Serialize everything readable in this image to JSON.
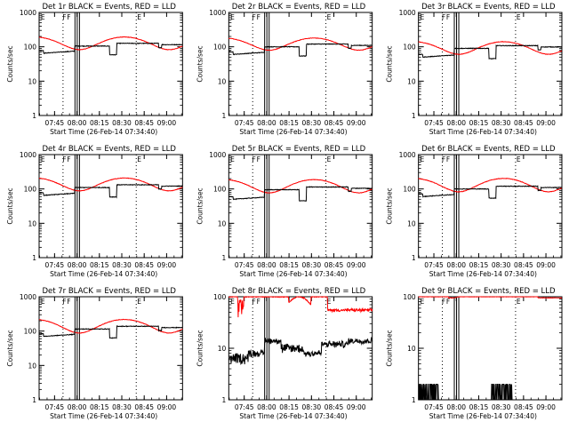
{
  "figure": {
    "layout": "3x3 grid"
  },
  "chart_data": [
    {
      "type": "line",
      "title": "Det 1r BLACK = Events, RED = LLD",
      "xlabel": "Start Time (26-Feb-14 07:34:40)",
      "ylabel": "Counts/sec",
      "yscale": "log",
      "ylim": [
        1,
        1000
      ],
      "ytick_labels": [
        "1",
        "10",
        "100",
        "1000"
      ],
      "x_tick_labels": [
        "07:45",
        "08:00",
        "08:15",
        "08:30",
        "08:45",
        "09:00"
      ],
      "xlim_minutes": [
        0,
        96
      ],
      "region_markers": [
        "E",
        "F",
        "F",
        "E"
      ],
      "region_marker_minutes": [
        0.5,
        15,
        18,
        65
      ],
      "vlines_dotted_minutes": [
        16,
        65
      ],
      "vlines_solid_minutes": [
        24,
        25.5,
        27
      ],
      "series": [
        {
          "color": "#ff0000",
          "base": 150,
          "amp": 110,
          "phase": 0,
          "noise": 0.03
        },
        {
          "color": "#000000",
          "kind": "events",
          "low": 65,
          "high": 105,
          "noise": 0.04
        }
      ]
    },
    {
      "type": "line",
      "title": "Det 2r BLACK = Events, RED = LLD",
      "xlabel": "Start Time (26-Feb-14 07:34:40)",
      "ylabel": "Counts/sec",
      "yscale": "log",
      "ylim": [
        1,
        1000
      ],
      "ytick_labels": [
        "1",
        "10",
        "100",
        "1000"
      ],
      "x_tick_labels": [
        "07:45",
        "08:00",
        "08:15",
        "08:30",
        "08:45",
        "09:00"
      ],
      "xlim_minutes": [
        0,
        96
      ],
      "region_markers": [
        "E",
        "F",
        "F",
        "E"
      ],
      "region_marker_minutes": [
        0.5,
        15,
        18,
        65
      ],
      "vlines_dotted_minutes": [
        16,
        65
      ],
      "vlines_solid_minutes": [
        24,
        25.5,
        27
      ],
      "series": [
        {
          "color": "#ff0000",
          "base": 145,
          "amp": 100,
          "phase": 0,
          "noise": 0.03
        },
        {
          "color": "#000000",
          "kind": "events",
          "low": 60,
          "high": 100,
          "noise": 0.04
        }
      ]
    },
    {
      "type": "line",
      "title": "Det 3r BLACK = Events, RED = LLD",
      "xlabel": "Start Time (26-Feb-14 07:34:40)",
      "ylabel": "Counts/sec",
      "yscale": "log",
      "ylim": [
        1,
        1000
      ],
      "ytick_labels": [
        "1",
        "10",
        "100",
        "1000"
      ],
      "x_tick_labels": [
        "07:45",
        "08:00",
        "08:15",
        "08:30",
        "08:45",
        "09:00"
      ],
      "xlim_minutes": [
        0,
        96
      ],
      "region_markers": [
        "E",
        "F",
        "F",
        "E"
      ],
      "region_marker_minutes": [
        0.5,
        15,
        18,
        65
      ],
      "vlines_dotted_minutes": [
        16,
        65
      ],
      "vlines_solid_minutes": [
        24,
        25.5,
        27
      ],
      "series": [
        {
          "color": "#ff0000",
          "base": 110,
          "amp": 80,
          "phase": 0,
          "noise": 0.03
        },
        {
          "color": "#000000",
          "kind": "events",
          "low": 50,
          "high": 90,
          "noise": 0.04
        }
      ]
    },
    {
      "type": "line",
      "title": "Det 4r BLACK = Events, RED = LLD",
      "xlabel": "Start Time (26-Feb-14 07:34:40)",
      "ylabel": "Counts/sec",
      "yscale": "log",
      "ylim": [
        1,
        1000
      ],
      "ytick_labels": [
        "1",
        "10",
        "100",
        "1000"
      ],
      "x_tick_labels": [
        "07:45",
        "08:00",
        "08:15",
        "08:30",
        "08:45",
        "09:00"
      ],
      "xlim_minutes": [
        0,
        96
      ],
      "region_markers": [
        "E",
        "F",
        "F",
        "E"
      ],
      "region_marker_minutes": [
        0.5,
        15,
        18,
        65
      ],
      "vlines_dotted_minutes": [
        16,
        65
      ],
      "vlines_solid_minutes": [
        24,
        25.5,
        27
      ],
      "series": [
        {
          "color": "#ff0000",
          "base": 160,
          "amp": 120,
          "phase": 0,
          "noise": 0.03
        },
        {
          "color": "#000000",
          "kind": "events",
          "low": 65,
          "high": 110,
          "noise": 0.04
        }
      ]
    },
    {
      "type": "line",
      "title": "Det 5r BLACK = Events, RED = LLD",
      "xlabel": "Start Time (26-Feb-14 07:34:40)",
      "ylabel": "Counts/sec",
      "yscale": "log",
      "ylim": [
        1,
        1000
      ],
      "ytick_labels": [
        "1",
        "10",
        "100",
        "1000"
      ],
      "x_tick_labels": [
        "07:45",
        "08:00",
        "08:15",
        "08:30",
        "08:45",
        "09:00"
      ],
      "xlim_minutes": [
        0,
        96
      ],
      "region_markers": [
        "E",
        "F",
        "F",
        "E"
      ],
      "region_marker_minutes": [
        0.5,
        15,
        18,
        65
      ],
      "vlines_dotted_minutes": [
        16,
        65
      ],
      "vlines_solid_minutes": [
        24,
        25.5,
        27
      ],
      "series": [
        {
          "color": "#ff0000",
          "base": 140,
          "amp": 110,
          "phase": 0,
          "noise": 0.03
        },
        {
          "color": "#000000",
          "kind": "events",
          "low": 50,
          "high": 95,
          "noise": 0.04
        }
      ]
    },
    {
      "type": "line",
      "title": "Det 6r BLACK = Events, RED = LLD",
      "xlabel": "Start Time (26-Feb-14 07:34:40)",
      "ylabel": "Counts/sec",
      "yscale": "log",
      "ylim": [
        1,
        1000
      ],
      "ytick_labels": [
        "1",
        "10",
        "100",
        "1000"
      ],
      "x_tick_labels": [
        "07:45",
        "08:00",
        "08:15",
        "08:30",
        "08:45",
        "09:00"
      ],
      "xlim_minutes": [
        0,
        96
      ],
      "region_markers": [
        "E",
        "F",
        "F",
        "E"
      ],
      "region_marker_minutes": [
        0.5,
        15,
        18,
        65
      ],
      "vlines_dotted_minutes": [
        16,
        65
      ],
      "vlines_solid_minutes": [
        24,
        25.5,
        27
      ],
      "series": [
        {
          "color": "#ff0000",
          "base": 150,
          "amp": 120,
          "phase": 0,
          "noise": 0.03
        },
        {
          "color": "#000000",
          "kind": "events",
          "low": 60,
          "high": 100,
          "noise": 0.04
        }
      ]
    },
    {
      "type": "line",
      "title": "Det 7r BLACK = Events, RED = LLD",
      "xlabel": "Start Time (26-Feb-14 07:34:40)",
      "ylabel": "Counts/sec",
      "yscale": "log",
      "ylim": [
        1,
        1000
      ],
      "ytick_labels": [
        "1",
        "10",
        "100",
        "1000"
      ],
      "x_tick_labels": [
        "07:45",
        "08:00",
        "08:15",
        "08:30",
        "08:45",
        "09:00"
      ],
      "xlim_minutes": [
        0,
        96
      ],
      "region_markers": [
        "E",
        "F",
        "F",
        "E"
      ],
      "region_marker_minutes": [
        0.5,
        15,
        18,
        65
      ],
      "vlines_dotted_minutes": [
        16,
        65
      ],
      "vlines_solid_minutes": [
        24,
        25.5,
        27
      ],
      "series": [
        {
          "color": "#ff0000",
          "base": 160,
          "amp": 130,
          "phase": 0,
          "noise": 0.03
        },
        {
          "color": "#000000",
          "kind": "events",
          "low": 70,
          "high": 115,
          "noise": 0.04
        }
      ]
    },
    {
      "type": "line",
      "title": "Det 8r BLACK = Events, RED = LLD",
      "xlabel": "Start Time (26-Feb-14 07:34:40)",
      "ylabel": "Counts/sec",
      "yscale": "log",
      "ylim": [
        1,
        100
      ],
      "ytick_labels": [
        "1",
        "10",
        "100"
      ],
      "x_tick_labels": [
        "07:45",
        "08:00",
        "08:15",
        "08:30",
        "08:45",
        "09:00"
      ],
      "xlim_minutes": [
        0,
        96
      ],
      "region_markers": [
        "E",
        "F",
        "F",
        "E"
      ],
      "region_marker_minutes": [
        0.5,
        15,
        18,
        65
      ],
      "vlines_dotted_minutes": [
        16,
        65
      ],
      "vlines_solid_minutes": [
        24,
        25.5,
        27
      ],
      "series": [
        {
          "color": "#ff0000",
          "kind": "lld8",
          "base": 60,
          "noise": 0.05
        },
        {
          "color": "#000000",
          "kind": "events8",
          "low": 8,
          "high": 14,
          "noise": 0.12
        }
      ]
    },
    {
      "type": "line",
      "title": "Det 9r BLACK = Events, RED = LLD",
      "xlabel": "Start Time (26-Feb-14 07:34:40)",
      "ylabel": "Counts/sec",
      "yscale": "log",
      "ylim": [
        1,
        100
      ],
      "ytick_labels": [
        "1",
        "10",
        "100"
      ],
      "x_tick_labels": [
        "07:45",
        "08:00",
        "08:15",
        "08:30",
        "08:45",
        "09:00"
      ],
      "xlim_minutes": [
        0,
        96
      ],
      "region_markers": [
        "E",
        "F",
        "F",
        "E"
      ],
      "region_marker_minutes": [
        0.5,
        15,
        18,
        65
      ],
      "vlines_dotted_minutes": [
        16,
        65
      ],
      "vlines_solid_minutes": [
        24,
        25.5,
        27
      ],
      "series": [
        {
          "color": "#ff0000",
          "kind": "lld9",
          "base": 95,
          "noise": 0.02
        },
        {
          "color": "#000000",
          "kind": "events9",
          "low": 1.2,
          "high": 2,
          "noise": 0
        }
      ]
    }
  ]
}
